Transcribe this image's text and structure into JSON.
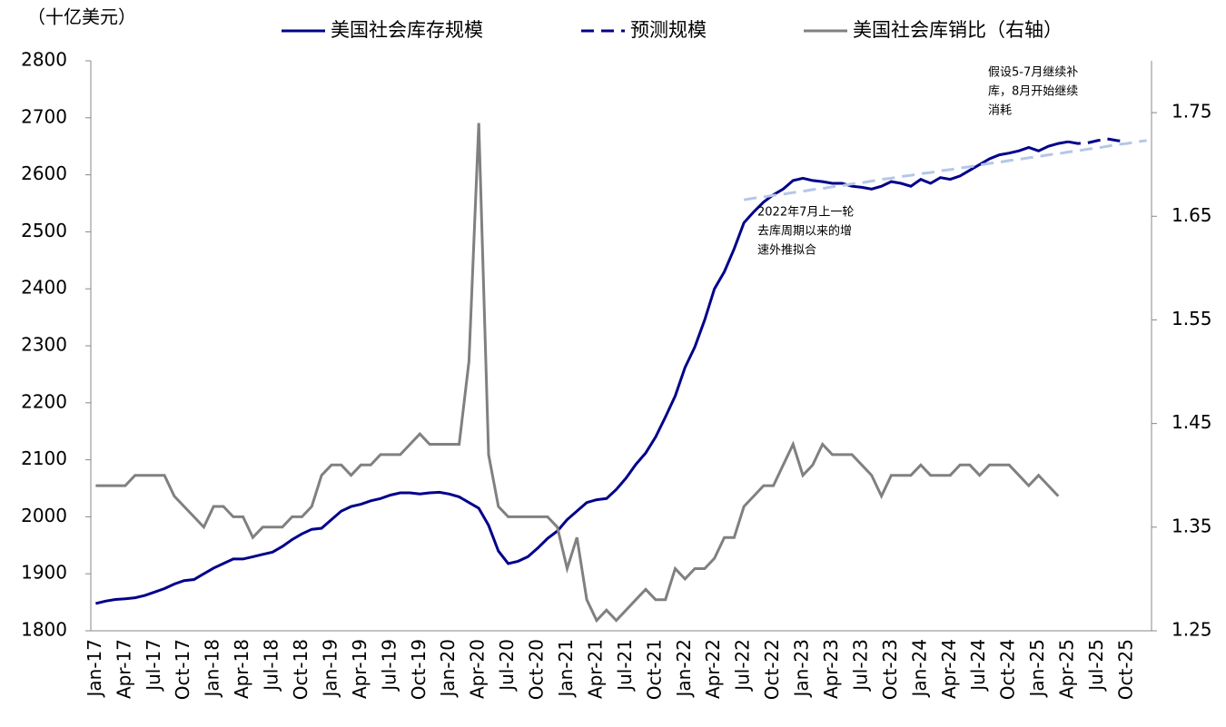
{
  "chart_data": {
    "type": "line",
    "unit_label": "（十亿美元）",
    "categories": [
      "Jan-17",
      null,
      null,
      "Apr-17",
      null,
      null,
      "Jul-17",
      null,
      null,
      "Oct-17",
      null,
      null,
      "Jan-18",
      null,
      null,
      "Apr-18",
      null,
      null,
      "Jul-18",
      null,
      null,
      "Oct-18",
      null,
      null,
      "Jan-19",
      null,
      null,
      "Apr-19",
      null,
      null,
      "Jul-19",
      null,
      null,
      "Oct-19",
      null,
      null,
      "Jan-20",
      null,
      null,
      "Apr-20",
      null,
      null,
      "Jul-20",
      null,
      null,
      "Oct-20",
      null,
      null,
      "Jan-21",
      null,
      null,
      "Apr-21",
      null,
      null,
      "Jul-21",
      null,
      null,
      "Oct-21",
      null,
      null,
      "Jan-22",
      null,
      null,
      "Apr-22",
      null,
      null,
      "Jul-22",
      null,
      null,
      "Oct-22",
      null,
      null,
      "Jan-23",
      null,
      null,
      "Apr-23",
      null,
      null,
      "Jul-23",
      null,
      null,
      "Oct-23",
      null,
      null,
      "Jan-24",
      null,
      null,
      "Apr-24",
      null,
      null,
      "Jul-24",
      null,
      null,
      "Oct-24",
      null,
      null,
      "Jan-25",
      null,
      null,
      "Apr-25",
      null,
      null,
      "Jul-25",
      null,
      null,
      "Oct-25",
      null,
      null
    ],
    "series": [
      {
        "name": "美国社会库存规模",
        "color": "#00008b",
        "dash": "solid",
        "axis": "y",
        "values": [
          1848,
          1852,
          1855,
          1856,
          1858,
          1862,
          1868,
          1874,
          1882,
          1888,
          1890,
          1900,
          1910,
          1918,
          1926,
          1926,
          1930,
          1934,
          1938,
          1948,
          1960,
          1970,
          1978,
          1980,
          1995,
          2010,
          2018,
          2022,
          2028,
          2032,
          2038,
          2042,
          2042,
          2040,
          2042,
          2043,
          2040,
          2035,
          2025,
          2015,
          1985,
          1940,
          1918,
          1922,
          1930,
          1945,
          1962,
          1975,
          1995,
          2010,
          2025,
          2030,
          2032,
          2048,
          2068,
          2092,
          2112,
          2140,
          2175,
          2212,
          2262,
          2298,
          2345,
          2400,
          2430,
          2470,
          2516,
          2535,
          2552,
          2565,
          2575,
          2590,
          2594,
          2590,
          2588,
          2585,
          2585,
          2580,
          2578,
          2575,
          2580,
          2588,
          2585,
          2580,
          2592,
          2585,
          2595,
          2592,
          2598,
          2608,
          2618,
          2628,
          2635,
          2638,
          2642,
          2648,
          2642,
          2650,
          2655,
          2658,
          null,
          null,
          null,
          null,
          null,
          null,
          null,
          null
        ]
      },
      {
        "name": "预测规模",
        "color": "#00008b",
        "dash": "dashed",
        "axis": "y",
        "values": [
          null,
          null,
          null,
          null,
          null,
          null,
          null,
          null,
          null,
          null,
          null,
          null,
          null,
          null,
          null,
          null,
          null,
          null,
          null,
          null,
          null,
          null,
          null,
          null,
          null,
          null,
          null,
          null,
          null,
          null,
          null,
          null,
          null,
          null,
          null,
          null,
          null,
          null,
          null,
          null,
          null,
          null,
          null,
          null,
          null,
          null,
          null,
          null,
          null,
          null,
          null,
          null,
          null,
          null,
          null,
          null,
          null,
          null,
          null,
          null,
          null,
          null,
          null,
          null,
          null,
          null,
          null,
          null,
          null,
          null,
          null,
          null,
          null,
          null,
          null,
          null,
          null,
          null,
          null,
          null,
          null,
          null,
          null,
          null,
          null,
          null,
          null,
          null,
          null,
          null,
          null,
          null,
          null,
          null,
          null,
          null,
          null,
          null,
          null,
          2658,
          2655,
          2656,
          2660,
          2663,
          2660,
          2658,
          null,
          null
        ]
      },
      {
        "name": "美国社会库销比（右轴）",
        "color": "#808080",
        "dash": "solid",
        "axis": "y2",
        "values": [
          1.39,
          1.39,
          1.39,
          1.39,
          1.4,
          1.4,
          1.4,
          1.4,
          1.38,
          1.37,
          1.36,
          1.35,
          1.37,
          1.37,
          1.36,
          1.36,
          1.34,
          1.35,
          1.35,
          1.35,
          1.36,
          1.36,
          1.37,
          1.4,
          1.41,
          1.41,
          1.4,
          1.41,
          1.41,
          1.42,
          1.42,
          1.42,
          1.43,
          1.44,
          1.43,
          1.43,
          1.43,
          1.43,
          1.51,
          1.74,
          1.42,
          1.37,
          1.36,
          1.36,
          1.36,
          1.36,
          1.36,
          1.35,
          1.31,
          1.34,
          1.28,
          1.26,
          1.27,
          1.26,
          1.27,
          1.28,
          1.29,
          1.28,
          1.28,
          1.31,
          1.3,
          1.31,
          1.31,
          1.32,
          1.34,
          1.34,
          1.37,
          1.38,
          1.39,
          1.39,
          1.41,
          1.43,
          1.4,
          1.41,
          1.43,
          1.42,
          1.42,
          1.42,
          1.41,
          1.4,
          1.38,
          1.4,
          1.4,
          1.4,
          1.41,
          1.4,
          1.4,
          1.4,
          1.41,
          1.41,
          1.4,
          1.41,
          1.41,
          1.41,
          1.4,
          1.39,
          1.4,
          1.39,
          1.38,
          null,
          null,
          null,
          null,
          null,
          null,
          null,
          null,
          null
        ]
      },
      {
        "color": "#b4c7e7",
        "dash": "dashed",
        "axis": "y",
        "values": [
          null,
          null,
          null,
          null,
          null,
          null,
          null,
          null,
          null,
          null,
          null,
          null,
          null,
          null,
          null,
          null,
          null,
          null,
          null,
          null,
          null,
          null,
          null,
          null,
          null,
          null,
          null,
          null,
          null,
          null,
          null,
          null,
          null,
          null,
          null,
          null,
          null,
          null,
          null,
          null,
          null,
          null,
          null,
          null,
          null,
          null,
          null,
          null,
          null,
          null,
          null,
          null,
          null,
          null,
          null,
          null,
          null,
          null,
          null,
          null,
          null,
          null,
          null,
          null,
          null,
          null,
          2556,
          2559,
          2561,
          2564,
          2566,
          2569,
          2571,
          2574,
          2576,
          2579,
          2581,
          2584,
          2586,
          2589,
          2592,
          2594,
          2597,
          2599,
          2602,
          2604,
          2607,
          2609,
          2612,
          2614,
          2617,
          2620,
          2622,
          2625,
          2627,
          2630,
          2632,
          2635,
          2637,
          2640,
          2642,
          2645,
          2647,
          2650,
          2653,
          2655,
          2658,
          2660
        ]
      }
    ],
    "ylim": [
      1800,
      2800
    ],
    "yticks": [
      1800,
      1900,
      2000,
      2100,
      2200,
      2300,
      2400,
      2500,
      2600,
      2700,
      2800
    ],
    "y2lim": [
      1.25,
      1.8
    ],
    "y2ticks": [
      1.25,
      1.35,
      1.45,
      1.55,
      1.65,
      1.75
    ],
    "annotations": [
      {
        "lines": [
          "2022年7月上一轮",
          "去库周期以来的增",
          "速外推拟合"
        ]
      },
      {
        "lines": [
          "假设5-7月继续补",
          "库，8月开始继续",
          "消耗"
        ]
      }
    ],
    "grid": false
  }
}
